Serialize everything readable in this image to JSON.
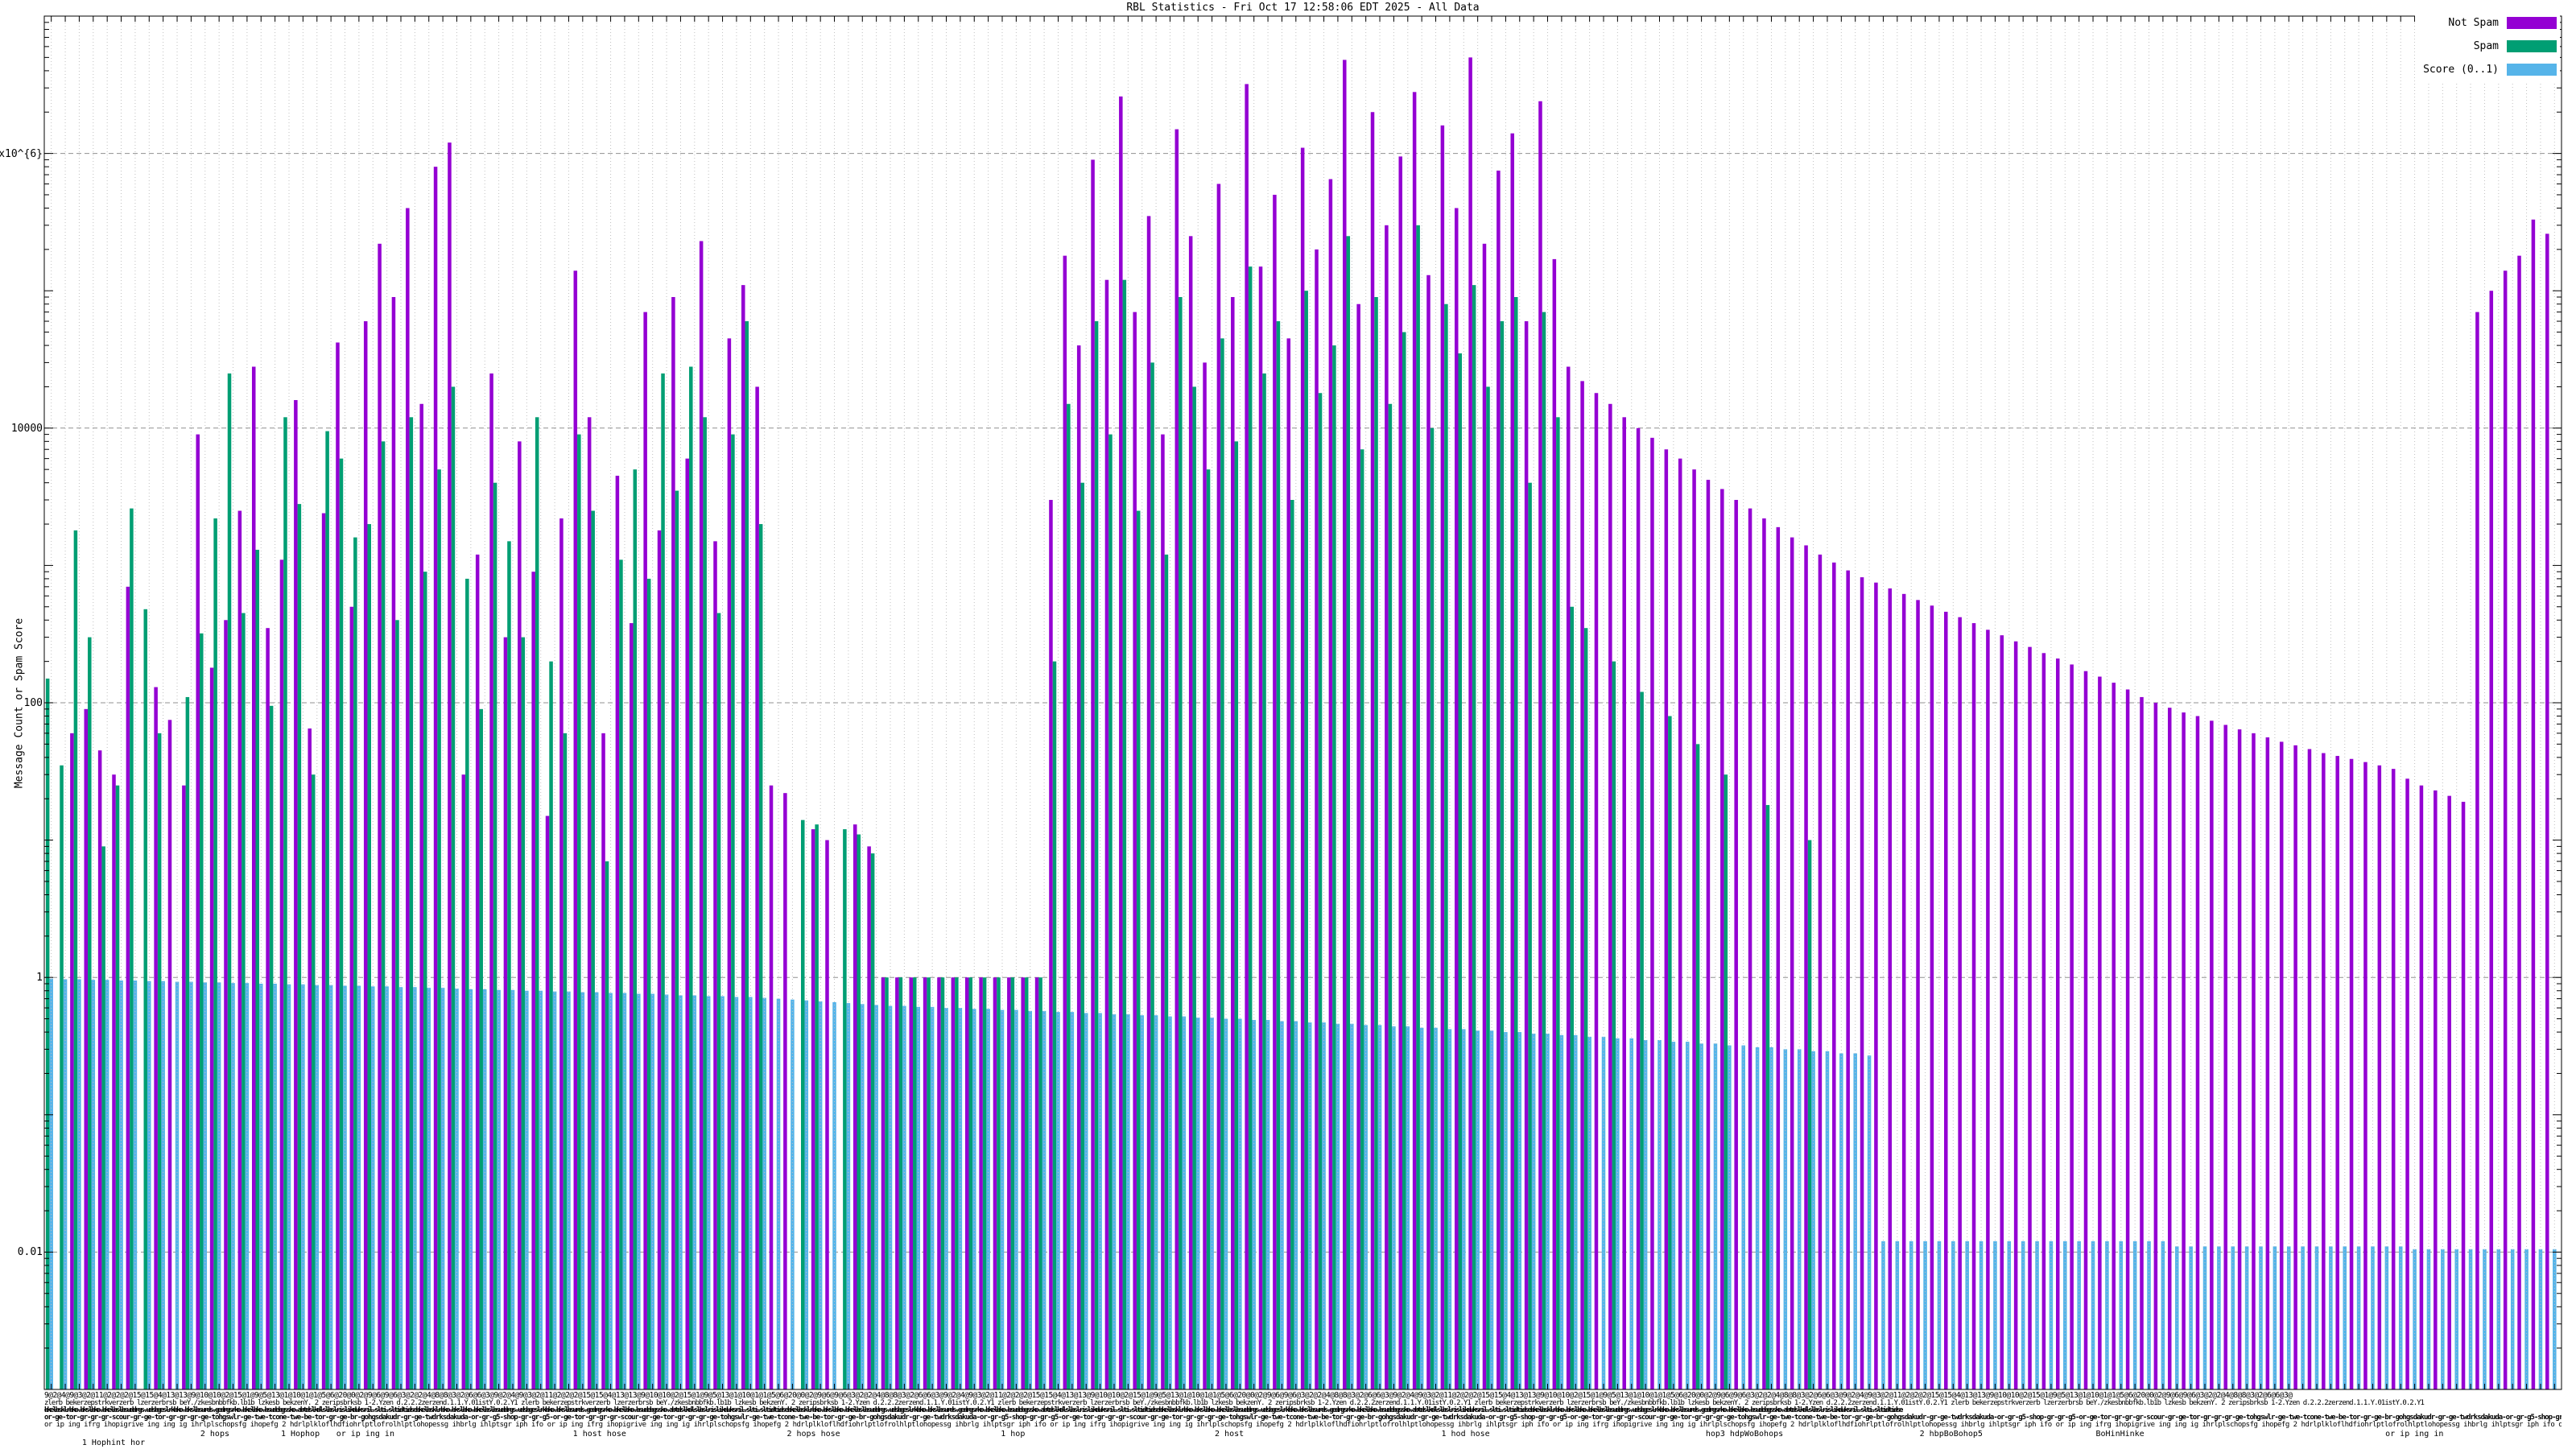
{
  "title": {
    "text": "RBL Statistics - Fri Oct 17 12:58:06 EDT 2025 - All Data"
  },
  "y_axis": {
    "label": "Message Count or Spam Score",
    "ticks": [
      {
        "label": "1x10^{6}",
        "value": 1000000
      },
      {
        "label": "10000",
        "value": 10000
      },
      {
        "label": "100",
        "value": 100
      },
      {
        "label": "1",
        "value": 1
      },
      {
        "label": "0.01",
        "value": 0.01
      }
    ]
  },
  "legend": {
    "entries": [
      {
        "label": "Not Spam",
        "color": "#9400d3"
      },
      {
        "label": "Spam",
        "color": "#009e73"
      },
      {
        "label": "Score (0..1)",
        "color": "#56b4e9"
      }
    ]
  },
  "colors": {
    "not_spam": "#9400d3",
    "spam": "#009e73",
    "score": "#56b4e9",
    "grid_minor": "#c0c0c0",
    "grid_major": "#909090",
    "axis": "#000000"
  },
  "x_axis": {
    "rows": [
      {
        "cls": "r1",
        "y": 1728,
        "repeat": 5,
        "pattern": "9@2@4@9@3@2@11@2@2@2@15@15@4@13@13@9@10@10@2@15@1@9@5@13@1@10@1@1@5@6@20@0@2@9@6@9@6@3@2@2@4@8@8@3@2@6@6@3@"
      },
      {
        "cls": "r2",
        "y": 1738,
        "repeat": 5,
        "pattern": "zlerb bekerzepstrkverzerb lzerzerbrsb beY./zkesbnbbfkb.lb1b lzkesb bekzenY. 2 zeripsbrksb 1-2.Yzen d.2.2.2zerzend.1.1.Y.01istY.0.2.Y1 "
      },
      {
        "cls": "r3",
        "y": 1747,
        "repeat": 5,
        "pattern": "bkelbsklrbko.bkslbko.bkelbslbsuddrgs.udsbgeslrkbko.bkslbsurds.gedrgsrko.bkelbko.bsudebgssko.abtdslkdlslbslrislikduksril.slti.sltidtidse"
      },
      {
        "cls": "r4",
        "y": 1756,
        "repeat": 5,
        "pattern": "or-ge-tor-gr-gr-gr-scour-gr-ge-tor-gr-gr-gr-ge-tohgswlr-ge-twe-tcone-twe-be-tor-gr-ge-br-gohgsdakudr-gr-ge-twdrksdakuda-or-gr-g5-shop-gr-gr-g5-"
      },
      {
        "cls": "r5",
        "y": 1765,
        "repeat": 6,
        "pattern": "or ip ing ifrg ihopigrive ing ing ig ihrlplschopsfg ihopefg 2 hdrlplkloflhdfiohrlptlofrolhlptlohopessg ihbrlg ihlptsgr iph ifo "
      }
    ],
    "fragments": [
      {
        "text": "2 hops",
        "x_pct": 6.2,
        "y": 1776
      },
      {
        "text": "1 Hophop",
        "x_pct": 9.4,
        "y": 1776
      },
      {
        "text": "or ip ing in",
        "x_pct": 11.6,
        "y": 1776
      },
      {
        "text": "1 host hose",
        "x_pct": 21.0,
        "y": 1776
      },
      {
        "text": "2 hops hose",
        "x_pct": 29.5,
        "y": 1776
      },
      {
        "text": "1 hop",
        "x_pct": 38.0,
        "y": 1776
      },
      {
        "text": "2 host",
        "x_pct": 46.5,
        "y": 1776
      },
      {
        "text": "1 hod hose",
        "x_pct": 55.5,
        "y": 1776
      },
      {
        "text": "hop3 hdpWoBohops",
        "x_pct": 66.0,
        "y": 1776
      },
      {
        "text": "2 hbpBoBohop5",
        "x_pct": 74.5,
        "y": 1776
      },
      {
        "text": "BoHinHinke",
        "x_pct": 81.5,
        "y": 1776
      },
      {
        "text": "or ip ing in",
        "x_pct": 93.0,
        "y": 1776
      },
      {
        "text": "1 Hophint hor",
        "x_pct": 1.5,
        "y": 1787
      }
    ]
  },
  "chart_data": {
    "type": "bar",
    "log_scale": true,
    "ylim": [
      0.001,
      10000000
    ],
    "ylabel": "Message Count or Spam Score",
    "title": "RBL Statistics - Fri Oct 17 12:58:06 EDT 2025 - All Data",
    "legend_position": "top-right",
    "grid": true,
    "cluster_count": 180,
    "series": [
      {
        "name": "Not Spam",
        "color": "#9400d3",
        "values": [
          0,
          0,
          60,
          90,
          45,
          30,
          700,
          0,
          130,
          75,
          25,
          9000,
          180,
          400,
          2500,
          28000,
          350,
          1100,
          16000,
          65,
          2400,
          42000,
          500,
          60000,
          220000,
          90000,
          400000,
          15000,
          800000,
          1200000,
          30,
          1200,
          25000,
          300,
          8000,
          900,
          15,
          2200,
          140000,
          12000,
          60,
          4500,
          380,
          70000,
          1800,
          90000,
          6000,
          230000,
          1500,
          45000,
          110000,
          20000,
          25,
          22,
          0,
          12,
          10,
          0,
          13,
          9,
          1,
          1,
          1,
          1,
          1,
          1,
          1,
          1,
          1,
          1,
          1,
          1,
          3000,
          180000,
          40000,
          900000,
          120000,
          2600000,
          70000,
          350000,
          9000,
          1500000,
          250000,
          30000,
          600000,
          90000,
          3200000,
          150000,
          500000,
          45000,
          1100000,
          200000,
          650000,
          4800000,
          80000,
          2000000,
          300000,
          950000,
          2800000,
          130000,
          1600000,
          400000,
          5000000,
          220000,
          750000,
          1400000,
          60000,
          2400000,
          170000,
          28000,
          22000,
          18000,
          15000,
          12000,
          10000,
          8500,
          7000,
          6000,
          5000,
          4200,
          3600,
          3000,
          2600,
          2200,
          1900,
          1600,
          1400,
          1200,
          1050,
          920,
          820,
          750,
          680,
          620,
          560,
          510,
          460,
          420,
          380,
          340,
          310,
          280,
          255,
          230,
          210,
          190,
          170,
          155,
          140,
          125,
          110,
          100,
          92,
          85,
          80,
          74,
          69,
          64,
          60,
          56,
          52,
          49,
          46,
          43,
          41,
          39,
          37,
          35,
          33,
          28,
          25,
          23,
          21,
          19,
          70000,
          100000,
          140000,
          180000,
          330000,
          260000
        ]
      },
      {
        "name": "Spam",
        "color": "#009e73",
        "values": [
          150,
          35,
          1800,
          300,
          9,
          25,
          2600,
          480,
          60,
          0,
          110,
          320,
          2200,
          25000,
          450,
          1300,
          95,
          12000,
          2800,
          30,
          9500,
          6000,
          1600,
          2000,
          8000,
          400,
          12000,
          900,
          5000,
          20000,
          800,
          90,
          4000,
          1500,
          300,
          12000,
          200,
          60,
          9000,
          2500,
          7,
          1100,
          5000,
          800,
          25000,
          3500,
          28000,
          12000,
          450,
          9000,
          60000,
          2000,
          0,
          0,
          14,
          13,
          0,
          12,
          11,
          8,
          1,
          1,
          1,
          1,
          1,
          1,
          1,
          1,
          1,
          1,
          1,
          1,
          200,
          15000,
          4000,
          60000,
          9000,
          120000,
          2500,
          30000,
          1200,
          90000,
          20000,
          5000,
          45000,
          8000,
          150000,
          25000,
          60000,
          3000,
          100000,
          18000,
          40000,
          250000,
          7000,
          90000,
          15000,
          50000,
          300000,
          10000,
          80000,
          35000,
          110000,
          20000,
          60000,
          90000,
          4000,
          70000,
          12000,
          500,
          350,
          0,
          200,
          0,
          120,
          0,
          80,
          0,
          50,
          0,
          30,
          0,
          0,
          18,
          0,
          0,
          10,
          0,
          0,
          0,
          0,
          0,
          0,
          0,
          0,
          0,
          0,
          0,
          0,
          0,
          0,
          0,
          0,
          0,
          0,
          0,
          0,
          0,
          0,
          0,
          0,
          0,
          0,
          0,
          0,
          0,
          0,
          0,
          0,
          0,
          0,
          0,
          0,
          0,
          0,
          0,
          0,
          0,
          0,
          0,
          0,
          0,
          0,
          0,
          0,
          0,
          0,
          0,
          0,
          0
        ]
      },
      {
        "name": "Score (0..1)",
        "color": "#56b4e9",
        "values": [
          0.98,
          0.97,
          0.97,
          0.96,
          0.96,
          0.95,
          0.95,
          0.94,
          0.94,
          0.93,
          0.93,
          0.92,
          0.92,
          0.91,
          0.91,
          0.9,
          0.9,
          0.89,
          0.89,
          0.88,
          0.88,
          0.87,
          0.87,
          0.86,
          0.86,
          0.85,
          0.85,
          0.84,
          0.84,
          0.83,
          0.82,
          0.82,
          0.81,
          0.81,
          0.8,
          0.8,
          0.79,
          0.79,
          0.78,
          0.78,
          0.77,
          0.77,
          0.76,
          0.76,
          0.75,
          0.74,
          0.74,
          0.73,
          0.73,
          0.72,
          0.72,
          0.71,
          0.7,
          0.69,
          0.68,
          0.67,
          0.66,
          0.65,
          0.64,
          0.63,
          0.62,
          0.62,
          0.61,
          0.61,
          0.6,
          0.6,
          0.59,
          0.59,
          0.58,
          0.58,
          0.57,
          0.57,
          0.56,
          0.56,
          0.55,
          0.55,
          0.54,
          0.54,
          0.53,
          0.53,
          0.52,
          0.52,
          0.51,
          0.51,
          0.5,
          0.5,
          0.49,
          0.49,
          0.48,
          0.48,
          0.47,
          0.47,
          0.46,
          0.46,
          0.45,
          0.45,
          0.44,
          0.44,
          0.43,
          0.43,
          0.42,
          0.42,
          0.41,
          0.41,
          0.4,
          0.4,
          0.39,
          0.39,
          0.38,
          0.38,
          0.37,
          0.37,
          0.36,
          0.36,
          0.35,
          0.35,
          0.34,
          0.34,
          0.33,
          0.33,
          0.32,
          0.32,
          0.31,
          0.31,
          0.3,
          0.3,
          0.29,
          0.29,
          0.28,
          0.28,
          0.27,
          0.012,
          0.012,
          0.012,
          0.012,
          0.012,
          0.012,
          0.012,
          0.012,
          0.012,
          0.012,
          0.012,
          0.012,
          0.012,
          0.012,
          0.012,
          0.012,
          0.012,
          0.012,
          0.012,
          0.012,
          0.012,
          0.011,
          0.011,
          0.011,
          0.011,
          0.011,
          0.011,
          0.011,
          0.011,
          0.011,
          0.011,
          0.011,
          0.011,
          0.011,
          0.011,
          0.011,
          0.011,
          0.011,
          0.0105,
          0.0105,
          0.0105,
          0.0105,
          0.0105,
          0.0105,
          0.0105,
          0.0105,
          0.0105,
          0.0105,
          0.0105
        ]
      }
    ]
  }
}
